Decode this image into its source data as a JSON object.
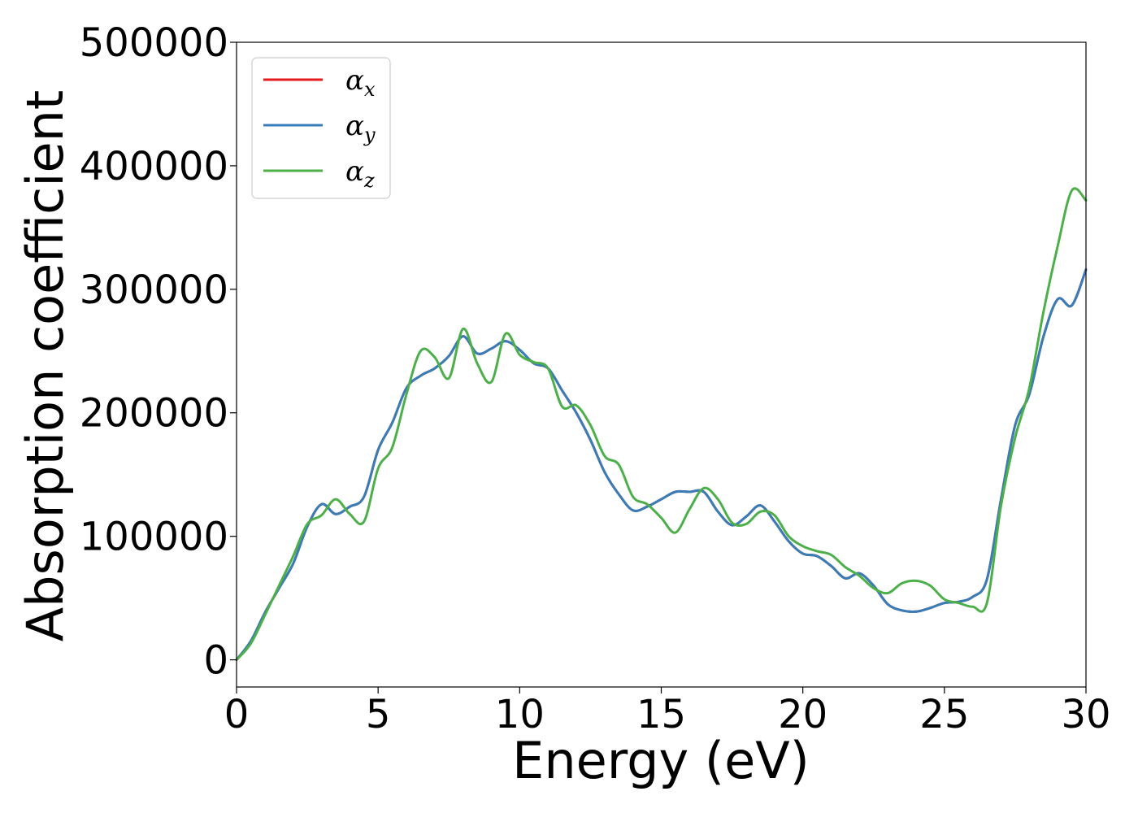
{
  "chart_data": {
    "type": "line",
    "xlabel": "Energy (eV)",
    "ylabel": "Absorption coefficient",
    "xlim": [
      0,
      30
    ],
    "ylim": [
      -22000,
      500000
    ],
    "xticks": [
      0,
      5,
      10,
      15,
      20,
      25,
      30
    ],
    "yticks": [
      0,
      100000,
      200000,
      300000,
      400000,
      500000
    ],
    "grid": false,
    "legend_position": "top-left",
    "series": [
      {
        "name": "α",
        "subscript": "x",
        "color": "#e41a1c",
        "x": [
          0,
          0.5,
          1,
          1.5,
          2,
          2.5,
          3,
          3.5,
          4,
          4.5,
          5,
          5.5,
          6,
          6.5,
          7,
          7.5,
          8,
          8.5,
          9,
          9.5,
          10,
          10.5,
          11,
          11.5,
          12,
          12.5,
          13,
          13.5,
          14,
          14.5,
          15,
          15.5,
          16,
          16.5,
          17,
          17.5,
          18,
          18.5,
          19,
          19.5,
          20,
          20.5,
          21,
          21.5,
          22,
          22.5,
          23,
          23.5,
          24,
          24.5,
          25,
          25.5,
          26,
          26.5,
          27,
          27.5,
          28,
          28.5,
          29,
          29.5,
          30
        ],
        "y": [
          0,
          15000,
          38000,
          58000,
          78000,
          108000,
          126000,
          118000,
          124000,
          132000,
          170000,
          192000,
          220000,
          230000,
          236000,
          246000,
          262000,
          248000,
          252000,
          258000,
          251000,
          240000,
          236000,
          218000,
          200000,
          178000,
          152000,
          134000,
          121000,
          124000,
          130000,
          136000,
          136000,
          136000,
          120000,
          109000,
          116000,
          125000,
          112000,
          96000,
          86000,
          84000,
          76000,
          66000,
          70000,
          60000,
          45000,
          40000,
          39000,
          42000,
          46000,
          47000,
          51000,
          65000,
          130000,
          190000,
          215000,
          262000,
          292000,
          287000,
          316000
        ]
      },
      {
        "name": "α",
        "subscript": "y",
        "color": "#377eb8",
        "x": [
          0,
          0.5,
          1,
          1.5,
          2,
          2.5,
          3,
          3.5,
          4,
          4.5,
          5,
          5.5,
          6,
          6.5,
          7,
          7.5,
          8,
          8.5,
          9,
          9.5,
          10,
          10.5,
          11,
          11.5,
          12,
          12.5,
          13,
          13.5,
          14,
          14.5,
          15,
          15.5,
          16,
          16.5,
          17,
          17.5,
          18,
          18.5,
          19,
          19.5,
          20,
          20.5,
          21,
          21.5,
          22,
          22.5,
          23,
          23.5,
          24,
          24.5,
          25,
          25.5,
          26,
          26.5,
          27,
          27.5,
          28,
          28.5,
          29,
          29.5,
          30
        ],
        "y": [
          0,
          15000,
          38000,
          58000,
          78000,
          108000,
          126000,
          118000,
          124000,
          132000,
          170000,
          192000,
          220000,
          230000,
          236000,
          246000,
          262000,
          248000,
          252000,
          258000,
          251000,
          240000,
          236000,
          218000,
          200000,
          178000,
          152000,
          134000,
          121000,
          124000,
          130000,
          136000,
          136000,
          136000,
          120000,
          109000,
          116000,
          125000,
          112000,
          96000,
          86000,
          84000,
          76000,
          66000,
          70000,
          60000,
          45000,
          40000,
          39000,
          42000,
          46000,
          47000,
          51000,
          65000,
          130000,
          190000,
          215000,
          262000,
          292000,
          287000,
          316000
        ]
      },
      {
        "name": "α",
        "subscript": "z",
        "color": "#4daf4a",
        "x": [
          0,
          0.5,
          1,
          1.5,
          2,
          2.5,
          3,
          3.5,
          4,
          4.5,
          5,
          5.5,
          6,
          6.5,
          7,
          7.5,
          8,
          8.5,
          9,
          9.5,
          10,
          10.5,
          11,
          11.5,
          12,
          12.5,
          13,
          13.5,
          14,
          14.5,
          15,
          15.5,
          16,
          16.5,
          17,
          17.5,
          18,
          18.5,
          19,
          19.5,
          20,
          20.5,
          21,
          21.5,
          22,
          22.5,
          23,
          23.5,
          24,
          24.5,
          25,
          25.5,
          26,
          26.5,
          27,
          27.5,
          28,
          28.5,
          29,
          29.5,
          30
        ],
        "y": [
          0,
          13000,
          36000,
          60000,
          84000,
          110000,
          117000,
          130000,
          118000,
          112000,
          155000,
          172000,
          215000,
          250000,
          245000,
          228000,
          268000,
          240000,
          225000,
          264000,
          247000,
          241000,
          236000,
          205000,
          206000,
          190000,
          165000,
          158000,
          132000,
          126000,
          115000,
          103000,
          122000,
          139000,
          130000,
          111000,
          110000,
          120000,
          117000,
          100000,
          92000,
          88000,
          85000,
          75000,
          68000,
          58000,
          54000,
          62000,
          64000,
          60000,
          49000,
          46000,
          43000,
          46000,
          125000,
          180000,
          220000,
          282000,
          335000,
          380000,
          372000
        ]
      }
    ]
  }
}
